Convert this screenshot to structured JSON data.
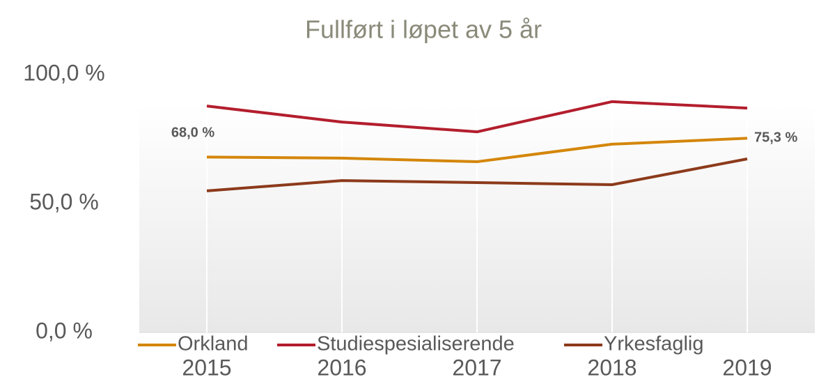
{
  "chart_data": {
    "type": "line",
    "title": "Fullført i løpet av 5 år",
    "categories": [
      "2015",
      "2016",
      "2017",
      "2018",
      "2019"
    ],
    "series": [
      {
        "name": "Orkland",
        "color": "#d4860b",
        "values": [
          68.0,
          67.6,
          66.2,
          73.0,
          75.3
        ],
        "value_labels": [
          "68,0 %",
          null,
          null,
          null,
          "75,3 %"
        ]
      },
      {
        "name": "Studiespesialiserende",
        "color": "#b31e2d",
        "values": [
          87.8,
          81.6,
          77.8,
          89.5,
          87.0
        ]
      },
      {
        "name": "Yrkesfaglig",
        "color": "#8c3a1b",
        "values": [
          54.9,
          58.9,
          58.1,
          57.3,
          67.3
        ]
      }
    ],
    "ylim": [
      0,
      100
    ],
    "yticks": [
      {
        "value": 0,
        "label": "0,0 %"
      },
      {
        "value": 50,
        "label": "50,0 %"
      },
      {
        "value": 100,
        "label": "100,0 %"
      }
    ],
    "grid": true,
    "legend": "bottom"
  }
}
